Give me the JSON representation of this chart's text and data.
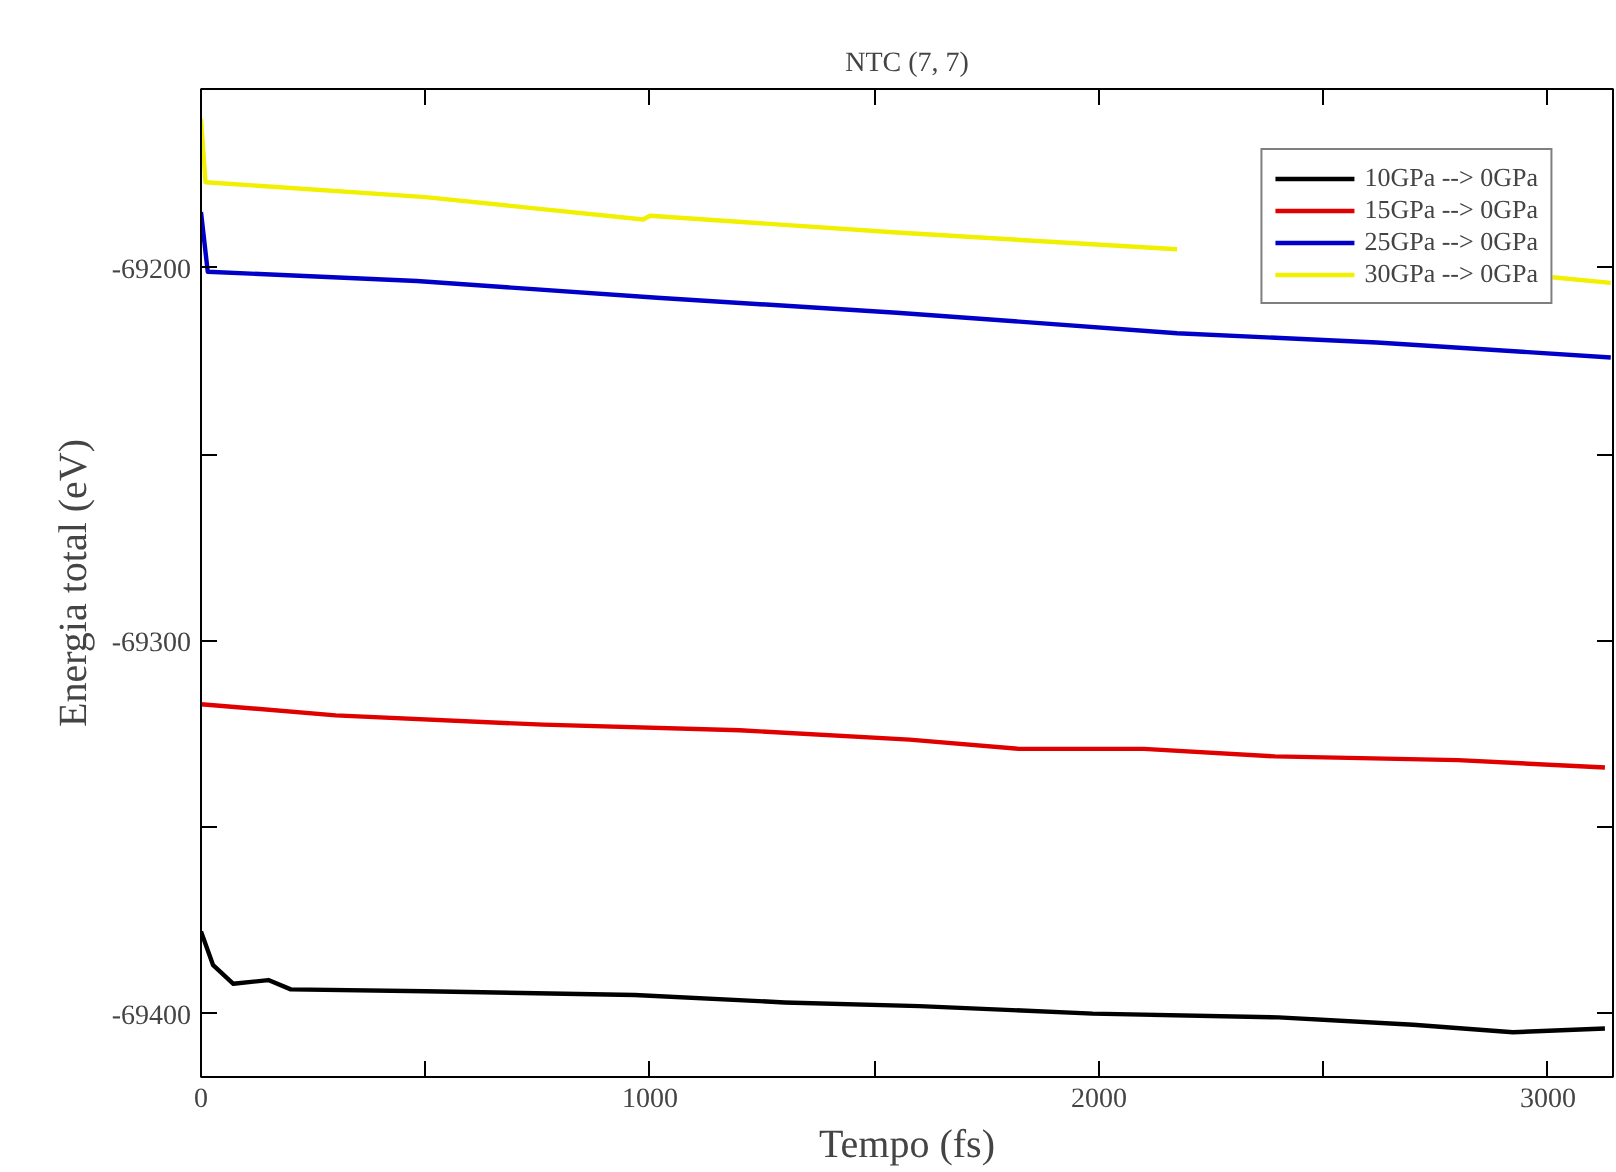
{
  "chart_data": {
    "type": "line",
    "title": "NTC (7, 7)",
    "xlabel": "Tempo (fs)",
    "ylabel": "Energia total (eV)",
    "xlim": [
      0,
      3145
    ],
    "ylim": [
      -69417,
      -69152
    ],
    "xticks": [
      0,
      {
        "value": 500,
        "label": null
      },
      1000,
      {
        "value": 1500,
        "label": null
      },
      2000,
      {
        "value": 2500,
        "label": null
      },
      3000
    ],
    "yticks": [
      -69400,
      {
        "value": -69350,
        "label": null
      },
      -69300,
      {
        "value": -69250,
        "label": null
      },
      -69200
    ],
    "grid": false,
    "legend": "top right",
    "line_style": "solid",
    "marker": "none",
    "series": [
      {
        "name": "10GPa --> 0GPa",
        "color": "#000000",
        "x": [
          0,
          27,
          72,
          150,
          200,
          500,
          966,
          1300,
          1600,
          1986,
          2400,
          2700,
          2922,
          3127
        ],
        "values": [
          -69378,
          -69387,
          -69392,
          -69391,
          -69393.5,
          -69394,
          -69395,
          -69397,
          -69398,
          -69400,
          -69401,
          -69403,
          -69405,
          -69404
        ]
      },
      {
        "name": "15GPa --> 0GPa",
        "color": "#e00000",
        "x": [
          0,
          300,
          762,
          1200,
          1578,
          1822,
          2100,
          2392,
          2800,
          3127
        ],
        "values": [
          -69317,
          -69320,
          -69322.5,
          -69324,
          -69326.5,
          -69329,
          -69329,
          -69331,
          -69332,
          -69334
        ]
      },
      {
        "name": "25GPa --> 0GPa",
        "color": "#0000c8",
        "x": [
          0,
          15,
          481,
          1016,
          1550,
          2174,
          2619,
          3140
        ],
        "values": [
          -69185,
          -69201,
          -69203.5,
          -69208,
          -69212,
          -69217.5,
          -69220,
          -69224
        ]
      },
      {
        "name": "30GPa --> 0GPa",
        "color": "#f0f000",
        "x": [
          0,
          10,
          500,
          985,
          1000,
          1550,
          2174,
          2230,
          3010,
          3140
        ],
        "values": [
          -69160,
          -69177,
          -69181,
          -69187,
          -69186,
          -69190.5,
          -69195,
          null,
          -69202.5,
          -69204
        ]
      }
    ]
  }
}
